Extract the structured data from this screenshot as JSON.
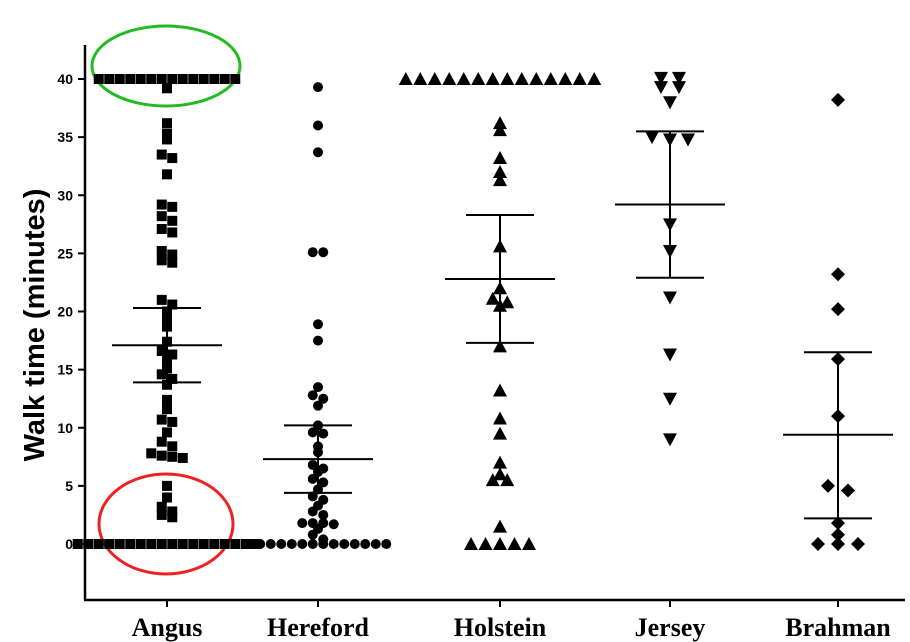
{
  "chart_data": {
    "type": "scatter",
    "title": "",
    "xlabel": "",
    "ylabel": "Walk time (minutes)",
    "ylim": [
      -5,
      43
    ],
    "yticks": [
      0,
      5,
      10,
      15,
      20,
      25,
      30,
      35,
      40
    ],
    "grid": false,
    "legend": "none",
    "categories": [
      "Angus",
      "Hereford",
      "Holstein",
      "Jersey",
      "Brahman"
    ],
    "series": [
      {
        "marker": "square",
        "values": [
          40,
          40,
          40,
          40,
          40,
          40,
          40,
          40,
          40,
          40,
          40,
          40,
          40,
          40,
          39.2,
          36.2,
          35.3,
          34.8,
          33.5,
          33.2,
          31.8,
          29.2,
          29,
          28.2,
          27.8,
          27.1,
          26.8,
          25.2,
          24.9,
          24.4,
          24.2,
          21,
          20.6,
          20,
          19.3,
          18.7,
          17.4,
          16.6,
          16.3,
          15.8,
          15.1,
          14.6,
          14.2,
          13.7,
          12.4,
          11.6,
          10.7,
          10.5,
          9.6,
          8.8,
          8.4,
          7.8,
          7.6,
          7.4,
          7.5,
          5,
          4,
          3.2,
          2.8,
          2.5,
          2.3,
          0,
          0,
          0,
          0,
          0,
          0,
          0,
          0,
          0,
          0,
          0,
          0,
          0,
          0,
          0,
          0,
          0,
          0
        ],
        "mean": 17.1,
        "error": [
          13.9,
          20.3
        ]
      },
      {
        "marker": "circle",
        "values": [
          39.3,
          36,
          33.7,
          25.1,
          25.1,
          18.9,
          17.5,
          13.5,
          12.8,
          12.5,
          11.9,
          10.2,
          9.6,
          9.5,
          8.4,
          7.9,
          6.8,
          6.5,
          6.2,
          5.6,
          5.3,
          4.7,
          4.1,
          3.8,
          3.3,
          2.8,
          2.5,
          1.8,
          1.8,
          1.8,
          1.7,
          1.3,
          0.8,
          0.4,
          0,
          0,
          0,
          0,
          0,
          0,
          0,
          0,
          0,
          0,
          0,
          0,
          0,
          0
        ],
        "mean": 7.3,
        "error": [
          4.4,
          10.2
        ]
      },
      {
        "marker": "triangle-up",
        "values": [
          40,
          40,
          40,
          40,
          40,
          40,
          40,
          40,
          40,
          40,
          40,
          40,
          40,
          40,
          36.2,
          35.6,
          33.2,
          32,
          31.3,
          25.6,
          22,
          21.1,
          20.8,
          20.5,
          17,
          13.2,
          10.8,
          9.5,
          7,
          6,
          5.5,
          5.5,
          1.5,
          0,
          0,
          0,
          0,
          0
        ],
        "mean": 22.8,
        "error": [
          17.3,
          28.3
        ]
      },
      {
        "marker": "triangle-down",
        "values": [
          40.1,
          40.1,
          39.3,
          39.3,
          38,
          35,
          34.8,
          34.8,
          27.5,
          25.2,
          21.2,
          16.3,
          12.5,
          9
        ],
        "mean": 29.2,
        "error": [
          22.9,
          35.5
        ]
      },
      {
        "marker": "diamond",
        "values": [
          38.2,
          23.2,
          20.2,
          15.9,
          11,
          5,
          4.6,
          1.8,
          0.8,
          0,
          0,
          0
        ],
        "mean": 9.4,
        "error": [
          2.2,
          16.5
        ]
      }
    ],
    "annotations": [
      {
        "shape": "ellipse",
        "color": "#22bb22",
        "around": "Angus values at 40"
      },
      {
        "shape": "ellipse",
        "color": "#ee2222",
        "around": "Angus values near 0"
      }
    ]
  }
}
